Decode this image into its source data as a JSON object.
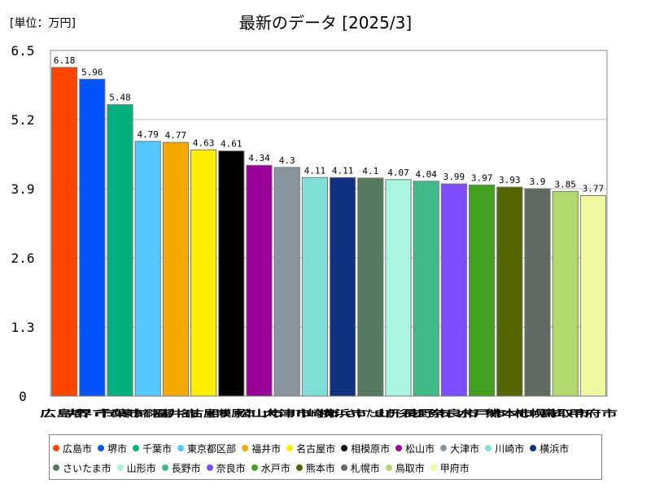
{
  "unit_label": "[単位：万円]",
  "chart_data": {
    "type": "bar",
    "title": "最新のデータ [2025/3]",
    "ylim": [
      0,
      6.5
    ],
    "yticks": [
      "6.5",
      "5.2",
      "3.9",
      "2.6",
      "1.3",
      "0"
    ],
    "ytick_values": [
      6.5,
      5.2,
      3.9,
      2.6,
      1.3,
      0
    ],
    "categories": [
      "広島市",
      "堺市",
      "千葉市",
      "東京都区部",
      "福井市",
      "名古屋市",
      "相模原市",
      "松山市",
      "大津市",
      "川崎市",
      "横浜市",
      "さいたま市",
      "山形市",
      "長野市",
      "奈良市",
      "水戸市",
      "熊本市",
      "札幌市",
      "鳥取市",
      "甲府市"
    ],
    "values": [
      6.18,
      5.96,
      5.48,
      4.79,
      4.77,
      4.63,
      4.61,
      4.34,
      4.3,
      4.11,
      4.11,
      4.1,
      4.07,
      4.04,
      3.99,
      3.97,
      3.93,
      3.9,
      3.85,
      3.77
    ],
    "value_labels": [
      "6.18",
      "5.96",
      "5.48",
      "4.79",
      "4.77",
      "4.63",
      "4.61",
      "4.34",
      "4.3",
      "4.11",
      "4.11",
      "4.1",
      "4.07",
      "4.04",
      "3.99",
      "3.97",
      "3.93",
      "3.9",
      "3.85",
      "3.77"
    ],
    "colors": [
      "#ff4500",
      "#0055ff",
      "#00b07c",
      "#55c8ff",
      "#f5a800",
      "#ffee00",
      "#000000",
      "#990099",
      "#8a949e",
      "#80e0d8",
      "#103080",
      "#567a60",
      "#a8f5e0",
      "#40bb88",
      "#7b4fff",
      "#44a020",
      "#556600",
      "#606a60",
      "#b2d870",
      "#f0f8a0"
    ]
  }
}
